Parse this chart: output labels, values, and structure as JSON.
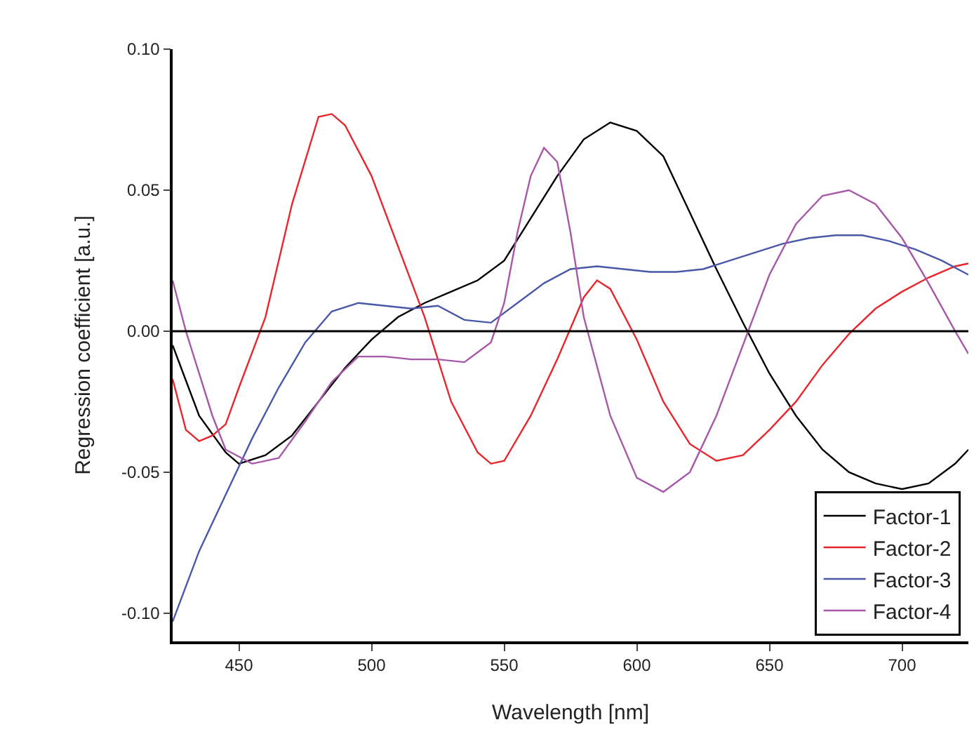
{
  "chart_data": {
    "type": "line",
    "xlabel": "Wavelength [nm]",
    "ylabel": "Regression coefficient [a.u.]",
    "xlim": [
      425,
      725
    ],
    "xticks": [
      450,
      500,
      550,
      600,
      650,
      700
    ],
    "ylim": [
      -0.11,
      0.1
    ],
    "yticks": [
      {
        "value": -0.1,
        "label": "-0.10"
      },
      {
        "value": -0.05,
        "label": "-0.05"
      },
      {
        "value": 0,
        "label": "0.00"
      },
      {
        "value": 0.05,
        "label": "0.05"
      },
      {
        "value": 0.1,
        "label": "0.10"
      }
    ],
    "grid": false,
    "legend": "bottom right",
    "marker": "none",
    "line_style": "solid",
    "ref_lines": [
      {
        "axis": "y",
        "value": 0,
        "color": "#000000"
      }
    ],
    "series": [
      {
        "name": "Factor-1",
        "color": "#000000",
        "x": [
          425,
          435,
          445,
          450,
          460,
          470,
          480,
          490,
          500,
          510,
          520,
          530,
          540,
          550,
          560,
          570,
          580,
          590,
          600,
          610,
          620,
          630,
          640,
          650,
          660,
          670,
          680,
          690,
          700,
          710,
          720,
          725
        ],
        "values": [
          -0.005,
          -0.03,
          -0.043,
          -0.047,
          -0.044,
          -0.037,
          -0.025,
          -0.013,
          -0.003,
          0.005,
          0.01,
          0.014,
          0.018,
          0.025,
          0.04,
          0.055,
          0.068,
          0.074,
          0.071,
          0.062,
          0.042,
          0.022,
          0.003,
          -0.015,
          -0.03,
          -0.042,
          -0.05,
          -0.054,
          -0.056,
          -0.054,
          -0.047,
          -0.042
        ]
      },
      {
        "name": "Factor-2",
        "color": "#e8262b",
        "x": [
          425,
          430,
          435,
          440,
          445,
          450,
          460,
          470,
          480,
          485,
          490,
          500,
          510,
          520,
          530,
          540,
          545,
          550,
          560,
          570,
          580,
          585,
          590,
          600,
          610,
          620,
          630,
          640,
          650,
          660,
          670,
          680,
          690,
          700,
          710,
          720,
          725
        ],
        "values": [
          -0.017,
          -0.035,
          -0.039,
          -0.037,
          -0.033,
          -0.02,
          0.005,
          0.045,
          0.076,
          0.077,
          0.073,
          0.055,
          0.03,
          0.005,
          -0.025,
          -0.043,
          -0.047,
          -0.046,
          -0.03,
          -0.01,
          0.012,
          0.018,
          0.015,
          -0.003,
          -0.025,
          -0.04,
          -0.046,
          -0.044,
          -0.035,
          -0.025,
          -0.012,
          -0.001,
          0.008,
          0.014,
          0.019,
          0.023,
          0.024
        ]
      },
      {
        "name": "Factor-3",
        "color": "#4a58a8",
        "x": [
          425,
          435,
          445,
          455,
          465,
          475,
          485,
          495,
          505,
          515,
          525,
          535,
          545,
          555,
          565,
          575,
          585,
          595,
          605,
          615,
          625,
          635,
          645,
          655,
          665,
          675,
          685,
          695,
          705,
          715,
          725
        ],
        "values": [
          -0.103,
          -0.078,
          -0.058,
          -0.038,
          -0.02,
          -0.004,
          0.007,
          0.01,
          0.009,
          0.008,
          0.009,
          0.004,
          0.003,
          0.01,
          0.017,
          0.022,
          0.023,
          0.022,
          0.021,
          0.021,
          0.022,
          0.025,
          0.028,
          0.031,
          0.033,
          0.034,
          0.034,
          0.032,
          0.029,
          0.025,
          0.02
        ]
      },
      {
        "name": "Factor-4",
        "color": "#a858a8",
        "x": [
          425,
          430,
          435,
          440,
          445,
          455,
          465,
          475,
          485,
          495,
          505,
          515,
          525,
          535,
          545,
          550,
          555,
          560,
          565,
          570,
          575,
          580,
          590,
          600,
          610,
          620,
          630,
          640,
          650,
          660,
          670,
          680,
          690,
          700,
          710,
          720,
          725
        ],
        "values": [
          0.018,
          0,
          -0.015,
          -0.03,
          -0.042,
          -0.047,
          -0.045,
          -0.032,
          -0.018,
          -0.009,
          -0.009,
          -0.01,
          -0.01,
          -0.011,
          -0.004,
          0.01,
          0.035,
          0.055,
          0.065,
          0.06,
          0.035,
          0.005,
          -0.03,
          -0.052,
          -0.057,
          -0.05,
          -0.03,
          -0.005,
          0.02,
          0.038,
          0.048,
          0.05,
          0.045,
          0.033,
          0.017,
          0,
          -0.008
        ]
      }
    ]
  }
}
